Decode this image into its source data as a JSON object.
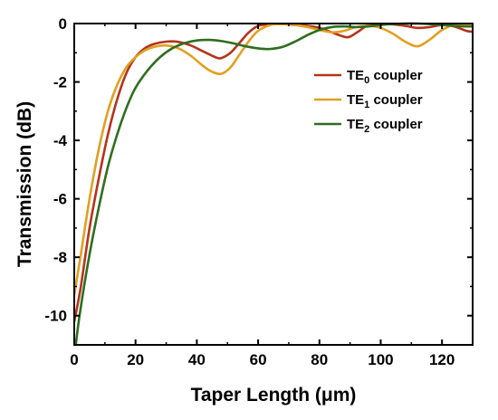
{
  "chart_data": {
    "type": "line",
    "xlabel": "Taper Length (μm)",
    "ylabel": "Transmission (dB)",
    "xlim": [
      0,
      130
    ],
    "ylim": [
      -11,
      0
    ],
    "xticks": [
      0,
      20,
      40,
      60,
      80,
      100,
      120
    ],
    "yticks": [
      0,
      -2,
      -4,
      -6,
      -8,
      -10
    ],
    "grid": false,
    "legend_position": "top-right",
    "series": [
      {
        "name": "TE0 coupler",
        "label_base": "TE",
        "label_sub": "0",
        "label_suffix": " coupler",
        "color": "#b5331c",
        "x": [
          0,
          2,
          5,
          8,
          11,
          14,
          17,
          20,
          23,
          26,
          30,
          34,
          38,
          42,
          46,
          48,
          51,
          54,
          57,
          60,
          64,
          68,
          72,
          76,
          80,
          84,
          88,
          90,
          93,
          96,
          100,
          104,
          108,
          112,
          116,
          120,
          124,
          128,
          130
        ],
        "y": [
          -10.2,
          -9.1,
          -7.0,
          -5.3,
          -3.8,
          -2.6,
          -1.7,
          -1.15,
          -0.85,
          -0.7,
          -0.62,
          -0.63,
          -0.75,
          -0.95,
          -1.15,
          -1.18,
          -1.0,
          -0.65,
          -0.3,
          -0.08,
          -0.02,
          -0.02,
          -0.05,
          -0.08,
          -0.15,
          -0.3,
          -0.45,
          -0.45,
          -0.25,
          -0.05,
          -0.02,
          -0.03,
          -0.08,
          -0.15,
          -0.12,
          -0.05,
          -0.1,
          -0.25,
          -0.28
        ]
      },
      {
        "name": "TE1 coupler",
        "label_base": "TE",
        "label_sub": "1",
        "label_suffix": " coupler",
        "color": "#e0a020",
        "x": [
          0,
          2,
          5,
          8,
          11,
          14,
          17,
          20,
          23,
          26,
          30,
          34,
          38,
          42,
          45,
          48,
          51,
          54,
          57,
          60,
          64,
          68,
          72,
          76,
          80,
          84,
          88,
          92,
          96,
          100,
          104,
          108,
          112,
          116,
          120,
          124,
          128,
          130
        ],
        "y": [
          -9.3,
          -8.0,
          -6.0,
          -4.3,
          -3.0,
          -2.1,
          -1.5,
          -1.15,
          -0.92,
          -0.8,
          -0.75,
          -0.85,
          -1.1,
          -1.45,
          -1.65,
          -1.72,
          -1.5,
          -1.05,
          -0.6,
          -0.25,
          -0.05,
          -0.02,
          -0.05,
          -0.12,
          -0.22,
          -0.3,
          -0.25,
          -0.12,
          -0.08,
          -0.15,
          -0.35,
          -0.62,
          -0.78,
          -0.55,
          -0.22,
          -0.05,
          -0.05,
          -0.08
        ]
      },
      {
        "name": "TE2 coupler",
        "label_base": "TE",
        "label_sub": "2",
        "label_suffix": " coupler",
        "color": "#2e6e1e",
        "x": [
          0.5,
          2,
          5,
          8,
          11,
          14,
          17,
          20,
          24,
          28,
          32,
          36,
          40,
          44,
          48,
          52,
          56,
          60,
          64,
          68,
          72,
          76,
          80,
          84,
          88,
          92,
          96,
          100,
          104,
          108,
          112,
          116,
          120,
          124,
          128,
          130
        ],
        "y": [
          -11,
          -9.8,
          -7.9,
          -6.3,
          -4.9,
          -3.8,
          -2.9,
          -2.2,
          -1.6,
          -1.15,
          -0.85,
          -0.67,
          -0.58,
          -0.56,
          -0.6,
          -0.68,
          -0.78,
          -0.85,
          -0.87,
          -0.8,
          -0.62,
          -0.4,
          -0.22,
          -0.12,
          -0.1,
          -0.12,
          -0.1,
          -0.05,
          -0.02,
          -0.0,
          -0.0,
          -0.02,
          -0.05,
          -0.08,
          -0.1,
          -0.1
        ]
      }
    ]
  }
}
